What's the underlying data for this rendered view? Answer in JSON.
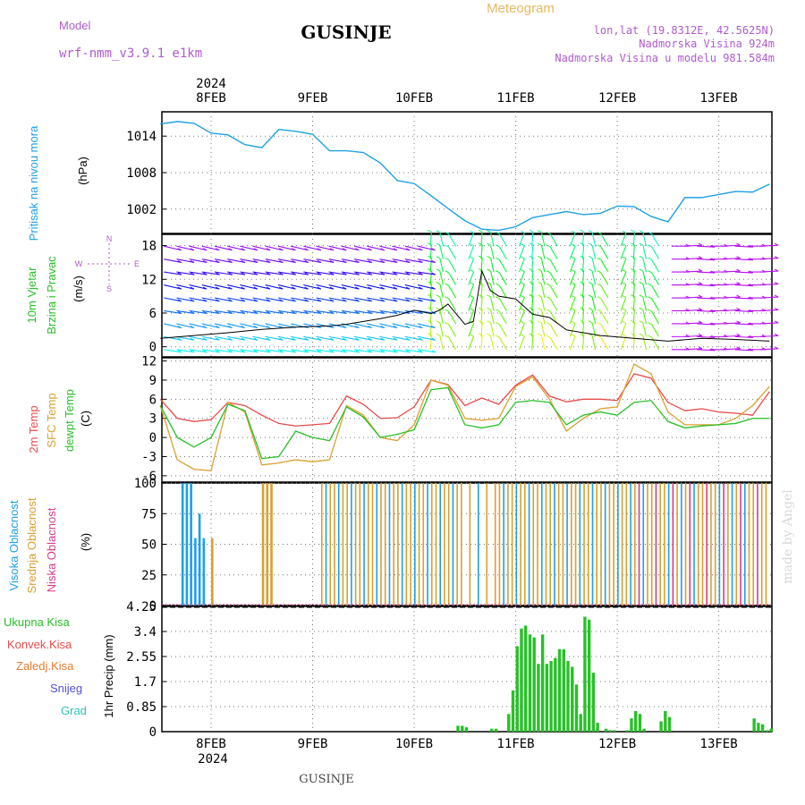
{
  "header": {
    "model_label": "Model",
    "model_name": "wrf-nmm_v3.9.1  e1km",
    "city": "GUSINJE",
    "product": "Meteogram",
    "lonlat": "lon,lat (19.8312E, 42.5625N)",
    "altitude": "Nadmorska Visina 924m",
    "model_altitude": "Nadmorska Visina u modelu 981.584m"
  },
  "time_axis": {
    "year_label": "2024",
    "day_labels": [
      "8FEB",
      "9FEB",
      "10FEB",
      "11FEB",
      "12FEB",
      "13FEB"
    ]
  },
  "panels": {
    "pressure": {
      "title": "Pritisak na nivou mora",
      "unit": "(hPa)",
      "ticks": [
        "1002",
        "1008",
        "1014"
      ]
    },
    "wind": {
      "title_line1": "10m Vjetar",
      "title_line2": "Brzina i Pravac",
      "unit": "(m/s)",
      "ticks": [
        "0",
        "6",
        "12",
        "18"
      ],
      "compass_n": "N",
      "compass_s": "S",
      "compass_w": "W",
      "compass_e": "E"
    },
    "temperature": {
      "label_2m": "2m Temp",
      "label_sfc": "SFC Temp",
      "label_dewpt": "dewpt Temp",
      "unit": "(C)",
      "ticks": [
        "-6",
        "-3",
        "0",
        "3",
        "6",
        "9",
        "12"
      ]
    },
    "clouds": {
      "label_high": "Visoka Oblacnost",
      "label_mid": "Srednja Oblacnost",
      "label_low": "Niska Oblacnost",
      "unit": "(%)",
      "ticks": [
        "0",
        "25",
        "50",
        "75",
        "100"
      ]
    },
    "precip": {
      "label_total": "Ukupna Kisa",
      "label_conv": "Konvek.Kisa",
      "label_frz": "Zaledj.Kisa",
      "label_snow": "Snijeg",
      "label_hail": "Grad",
      "ylabel": "1hr Precip (mm)",
      "ticks": [
        "0",
        "0.85",
        "1.7",
        "2.55",
        "3.4",
        "4.25"
      ]
    }
  },
  "footer": {
    "city": "GUSINJE"
  },
  "watermark": "made by Angel",
  "colors": {
    "pressure": "#1ea0e6",
    "temp2m": "#e84a4a",
    "sfc": "#d8a030",
    "dew": "#28c028",
    "high_cloud": "#1ea0e6",
    "mid_cloud": "#d8a030",
    "low_cloud": "#d83a8a",
    "precip_total": "#28c028",
    "precip_conv": "#e84a4a",
    "precip_frz": "#e87a30",
    "snow": "#5050e0",
    "hail": "#30c0c0",
    "purple_text": "#b05ad0"
  },
  "chart_data": [
    {
      "type": "line",
      "name": "pressure",
      "ylim": [
        998,
        1018
      ],
      "xlim": [
        0,
        144
      ],
      "x": [
        0,
        4,
        8,
        12,
        16,
        20,
        24,
        28,
        32,
        36,
        40,
        44,
        48,
        52,
        56,
        60,
        64,
        68,
        72,
        76,
        80,
        84,
        88,
        92,
        96,
        100,
        104,
        108,
        112,
        116,
        120,
        124,
        128,
        132,
        136,
        140,
        144
      ],
      "y": [
        1016,
        1016.4,
        1016.1,
        1014.5,
        1014.2,
        1012.6,
        1012.1,
        1015.1,
        1014.8,
        1014.3,
        1011.6,
        1011.6,
        1011.3,
        1009.6,
        1006.7,
        1006.2,
        1004.2,
        1002.1,
        1000.1,
        998.7,
        998.5,
        999.1,
        1000.6,
        1001.1,
        1001.6,
        1001.1,
        1001.3,
        1002.5,
        1002.4,
        1000.8,
        999.9,
        1003.9,
        1003.9,
        1004.4,
        1004.9,
        1004.8,
        1006.1
      ]
    },
    {
      "type": "line",
      "name": "wind speed",
      "ylim": [
        -1.8,
        20
      ],
      "x": [
        0,
        8,
        16,
        24,
        32,
        40,
        44,
        48,
        52,
        56,
        60,
        64,
        66,
        68,
        72,
        74,
        76,
        78,
        80,
        84,
        88,
        92,
        96,
        104,
        112,
        120,
        128,
        136,
        144
      ],
      "y": [
        1.5,
        2.0,
        2.5,
        3.1,
        3.5,
        3.7,
        4.0,
        4.5,
        5.0,
        5.6,
        6.5,
        5.9,
        6.5,
        7.6,
        4.0,
        4.5,
        13.5,
        10.0,
        9.0,
        8.5,
        5.8,
        5.2,
        3.0,
        2.0,
        1.5,
        1.0,
        1.5,
        1.3,
        1.0
      ]
    },
    {
      "type": "line",
      "ylim": [
        -7,
        12.5
      ],
      "series": [
        {
          "name": "2m Temp",
          "x": [
            0,
            4,
            8,
            12,
            16,
            20,
            24,
            28,
            32,
            36,
            40,
            44,
            48,
            52,
            56,
            60,
            64,
            68,
            72,
            76,
            80,
            84,
            88,
            92,
            96,
            100,
            104,
            108,
            112,
            116,
            120,
            124,
            128,
            132,
            136,
            140,
            144
          ],
          "y": [
            6,
            3,
            2.5,
            2.8,
            5.5,
            5.0,
            3.5,
            2.2,
            1.8,
            2.0,
            2.2,
            6.5,
            5.2,
            3.0,
            3.1,
            4.8,
            9.0,
            8.3,
            5.0,
            6.2,
            5.2,
            8.2,
            9.8,
            6.5,
            5.6,
            6.0,
            6.0,
            5.8,
            10.0,
            9.3,
            5.5,
            4.2,
            4.5,
            4.0,
            3.8,
            3.5,
            7.2
          ]
        },
        {
          "name": "SFC Temp",
          "x": [
            0,
            4,
            8,
            12,
            16,
            20,
            24,
            28,
            32,
            36,
            40,
            44,
            48,
            52,
            56,
            60,
            64,
            68,
            72,
            76,
            80,
            84,
            88,
            92,
            96,
            100,
            104,
            108,
            112,
            116,
            120,
            124,
            128,
            132,
            136,
            140,
            144
          ],
          "y": [
            5,
            -3.5,
            -5.0,
            -5.2,
            5.5,
            4.0,
            -4.3,
            -4.0,
            -3.5,
            -3.8,
            -3.5,
            5.0,
            3.5,
            0.0,
            -0.5,
            2.0,
            9.0,
            8.2,
            3.0,
            2.7,
            3.0,
            8.0,
            9.5,
            6.0,
            1.0,
            3.0,
            4.5,
            4.8,
            11.5,
            10.0,
            4.0,
            2.0,
            2.0,
            2.0,
            3.0,
            5.0,
            8.0
          ]
        },
        {
          "name": "dewpt Temp",
          "x": [
            0,
            4,
            8,
            12,
            16,
            20,
            24,
            28,
            32,
            36,
            40,
            44,
            48,
            52,
            56,
            60,
            64,
            68,
            72,
            76,
            80,
            84,
            88,
            92,
            96,
            100,
            104,
            108,
            112,
            116,
            120,
            124,
            128,
            132,
            136,
            140,
            144
          ],
          "y": [
            5,
            0.0,
            -1.5,
            0.0,
            5.2,
            4.2,
            -3.3,
            -3.0,
            1.0,
            0.0,
            -0.5,
            4.8,
            3.2,
            0.0,
            0.5,
            1.2,
            7.5,
            7.8,
            2.0,
            1.5,
            2.0,
            5.5,
            5.8,
            5.5,
            2.0,
            3.5,
            4.0,
            3.5,
            5.5,
            5.8,
            2.5,
            1.5,
            1.8,
            2.0,
            2.2,
            3.0,
            3.0
          ]
        }
      ]
    },
    {
      "type": "bar",
      "name": "cloud cover",
      "ylim": [
        0,
        100
      ],
      "series": [
        {
          "name": "Visoka Oblacnost",
          "x": [
            5,
            6,
            7,
            8,
            9,
            10
          ],
          "y": [
            100,
            100,
            100,
            55,
            75,
            55
          ]
        },
        {
          "name": "Srednja Oblacnost",
          "x": [
            12,
            24,
            25,
            26
          ],
          "y": [
            55,
            100,
            100,
            100
          ]
        }
      ]
    },
    {
      "type": "bar",
      "name": "1hr Precip",
      "ylim": [
        0,
        4.25
      ],
      "x": [
        70,
        71,
        72,
        78,
        79,
        82,
        83,
        84,
        85,
        86,
        87,
        88,
        89,
        90,
        91,
        92,
        93,
        94,
        95,
        96,
        97,
        98,
        99,
        100,
        101,
        102,
        103,
        104,
        105,
        106,
        107,
        108,
        109,
        110,
        111,
        112,
        113,
        114,
        115,
        116,
        118,
        119,
        120,
        121,
        122,
        140,
        141,
        142,
        143,
        144
      ],
      "y": [
        0.2,
        0.2,
        0.15,
        0.1,
        0.1,
        0.6,
        1.4,
        2.9,
        3.5,
        3.6,
        3.3,
        3.2,
        2.3,
        3.3,
        2.3,
        2.4,
        2.5,
        2.8,
        2.8,
        2.4,
        2.2,
        1.6,
        0.6,
        3.9,
        3.8,
        2.0,
        0.3,
        0.0,
        0.1,
        0.05,
        0.05,
        0.0,
        0.0,
        0.05,
        0.45,
        0.7,
        0.6,
        0.1,
        0.0,
        0.0,
        0.35,
        0.7,
        0.5,
        0.0,
        0.0,
        0.45,
        0.3,
        0.25,
        0.05,
        0.1
      ]
    }
  ]
}
